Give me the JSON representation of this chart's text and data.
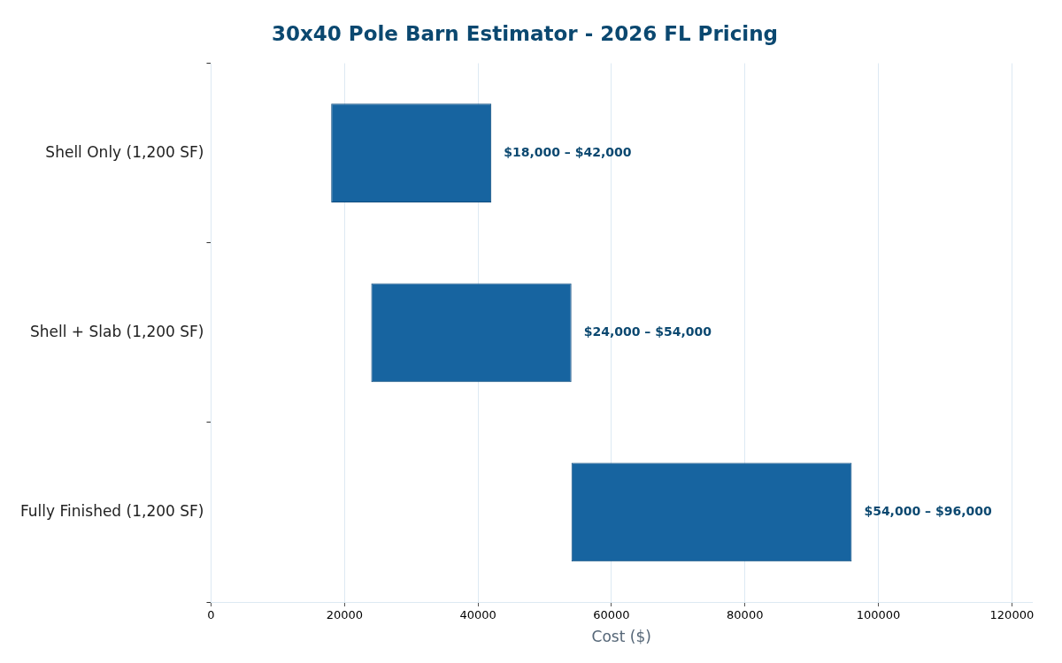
{
  "chart_data": {
    "type": "bar",
    "orientation": "horizontal",
    "title": "30x40 Pole Barn Estimator - 2026 FL Pricing",
    "xlabel": "Cost ($)",
    "categories": [
      "Shell Only (1,200 SF)",
      "Shell + Slab (1,200 SF)",
      "Fully Finished (1,200 SF)"
    ],
    "base": [
      18000,
      24000,
      54000
    ],
    "values": [
      24000,
      30000,
      42000
    ],
    "annotations": [
      {
        "text": "$18,000 – $42,000",
        "x": 42000,
        "y": "Shell Only (1,200 SF)"
      },
      {
        "text": "$24,000 – $54,000",
        "x": 54000,
        "y": "Shell + Slab (1,200 SF)"
      },
      {
        "text": "$54,000 – $96,000",
        "x": 96000,
        "y": "Fully Finished (1,200 SF)"
      }
    ],
    "color": "#1764a0",
    "xlim": [
      0,
      123000
    ],
    "xticks": [
      0,
      20000,
      40000,
      60000,
      80000,
      100000,
      120000
    ],
    "grid": "x",
    "legend": false
  }
}
